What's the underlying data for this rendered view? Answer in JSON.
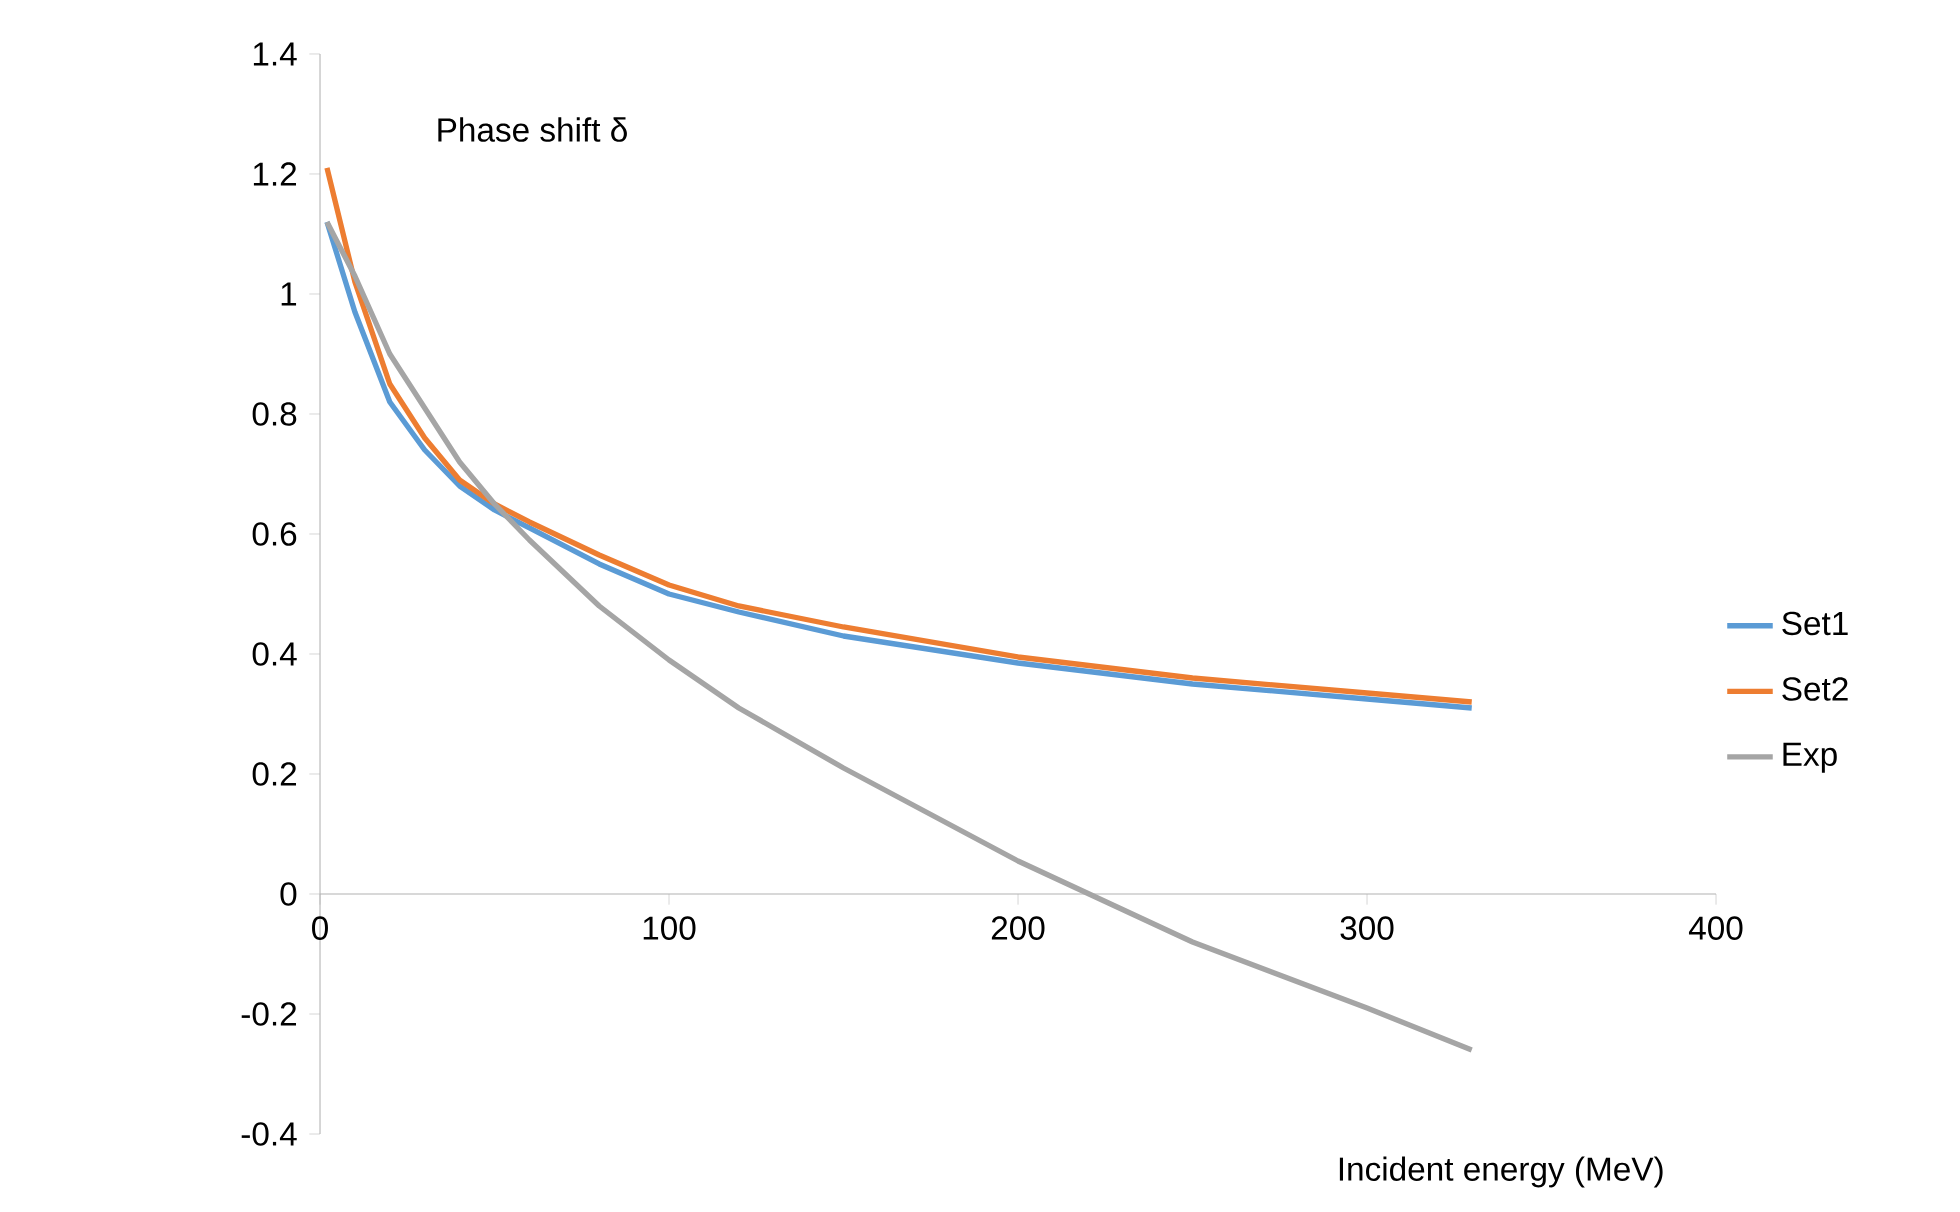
{
  "chart_data": {
    "type": "line",
    "ylabel": "Phase shift δ",
    "xlabel": "Incident energy (MeV)",
    "xlim": [
      0,
      400
    ],
    "ylim": [
      -0.4,
      1.4
    ],
    "xticks": [
      0,
      100,
      200,
      300,
      400
    ],
    "yticks": [
      -0.4,
      -0.2,
      0,
      0.2,
      0.4,
      0.6,
      0.8,
      1,
      1.2,
      1.4
    ],
    "legend": "right",
    "marker": "none",
    "line_style": "solid",
    "x": [
      2,
      10,
      20,
      30,
      40,
      50,
      60,
      80,
      100,
      120,
      150,
      200,
      250,
      300,
      330
    ],
    "series": [
      {
        "name": "Set1",
        "color": "#5b9bd5",
        "values": [
          1.12,
          0.97,
          0.82,
          0.74,
          0.68,
          0.64,
          0.61,
          0.55,
          0.5,
          0.47,
          0.43,
          0.385,
          0.35,
          0.325,
          0.31
        ]
      },
      {
        "name": "Set2",
        "color": "#ed7d31",
        "values": [
          1.21,
          1.02,
          0.85,
          0.76,
          0.69,
          0.65,
          0.62,
          0.565,
          0.515,
          0.48,
          0.445,
          0.395,
          0.36,
          0.335,
          0.32
        ]
      },
      {
        "name": "Exp",
        "color": "#a5a5a5",
        "values": [
          1.12,
          1.03,
          0.9,
          0.81,
          0.72,
          0.65,
          0.59,
          0.48,
          0.39,
          0.31,
          0.21,
          0.055,
          -0.08,
          -0.19,
          -0.26
        ]
      }
    ]
  }
}
